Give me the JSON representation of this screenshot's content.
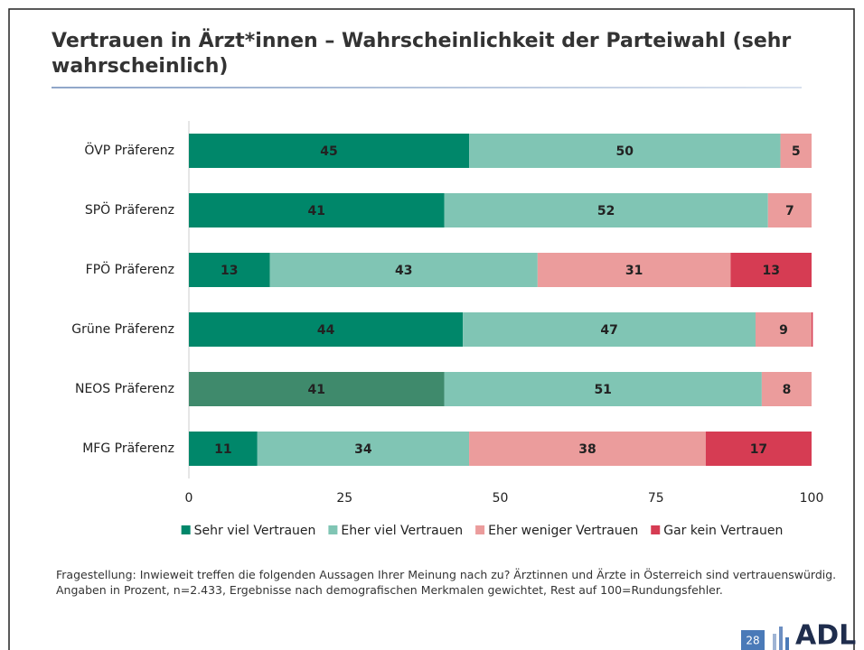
{
  "chart_data": {
    "type": "bar",
    "orientation": "horizontal",
    "stacked": true,
    "title": "Vertrauen in Ärzt*innen – Wahrscheinlichkeit der Parteiwahl (sehr wahrscheinlich)",
    "categories": [
      "ÖVP Präferenz",
      "SPÖ Präferenz",
      "FPÖ Präferenz",
      "Grüne Präferenz",
      "NEOS Präferenz",
      "MFG Präferenz"
    ],
    "series": [
      {
        "name": "Sehr viel Vertrauen",
        "color": "#00876a",
        "point_colors": [
          "#00876a",
          "#00876a",
          "#00876a",
          "#00876a",
          "#3f8a6c",
          "#00876a"
        ],
        "values": [
          45,
          41,
          13,
          44,
          41,
          11
        ]
      },
      {
        "name": "Eher viel Vertrauen",
        "color": "#80c5b4",
        "values": [
          50,
          52,
          43,
          47,
          51,
          34
        ]
      },
      {
        "name": "Eher weniger Vertrauen",
        "color": "#eb9c9c",
        "values": [
          5,
          7,
          31,
          9,
          8,
          38
        ]
      },
      {
        "name": "Gar kein Vertrauen",
        "color": "#d63c53",
        "values": [
          0,
          0,
          13,
          0.2,
          0,
          17
        ]
      }
    ],
    "xlim": [
      0,
      100
    ],
    "xticks": [
      0,
      25,
      50,
      75,
      100
    ],
    "grid": false,
    "legend": "bottom",
    "footnote": "Fragestellung: Inwieweit treffen die folgenden Aussagen Ihrer Meinung nach zu? Ärztinnen und Ärzte in Österreich sind vertrauenswürdig. Angaben in Prozent, n=2.433, Ergebnisse nach demografischen Merkmalen gewichtet, Rest auf 100=Rundungsfehler.",
    "page_number": "28",
    "logo": "ADL"
  }
}
